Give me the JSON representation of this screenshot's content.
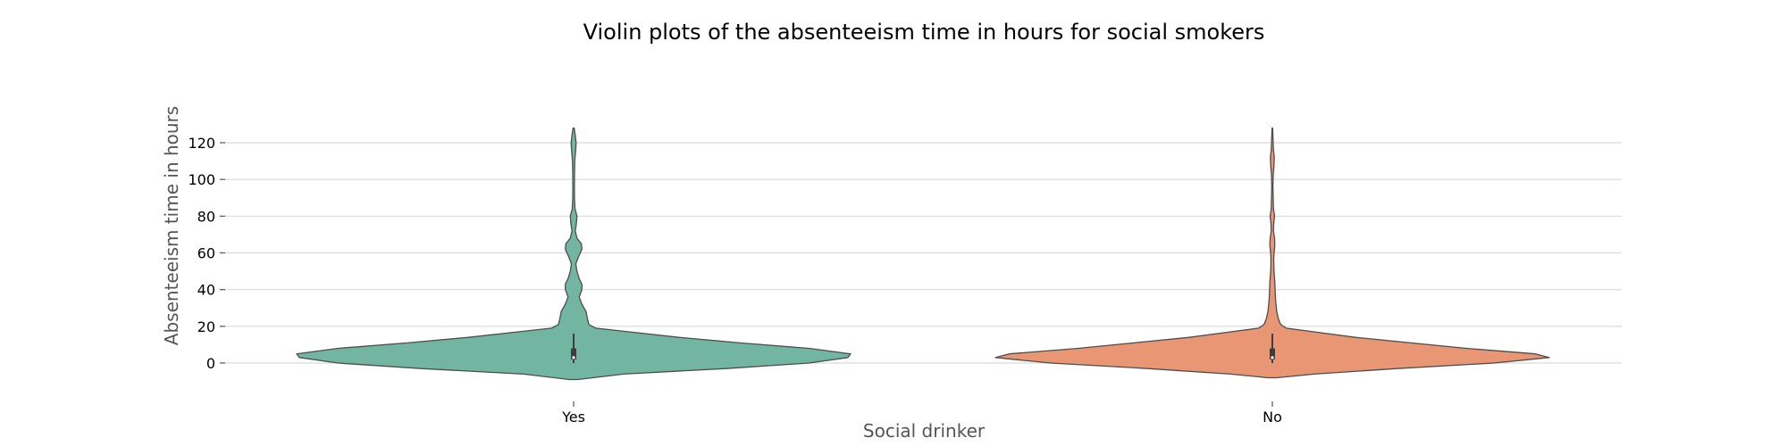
{
  "chart_data": {
    "type": "violin",
    "title": "Violin plots of the absenteeism time in hours for social smokers",
    "xlabel": "Social drinker",
    "ylabel": "Absenteeism time in hours",
    "categories": [
      "Yes",
      "No"
    ],
    "ylim": [
      -9,
      129
    ],
    "yticks": [
      0,
      20,
      40,
      60,
      80,
      100,
      120
    ],
    "grid": "horizontal",
    "colors": [
      "#72b6a1",
      "#e99675"
    ],
    "edge_color": "#4d4d4d",
    "violins": [
      {
        "category": "Yes",
        "density": [
          [
            -9,
            0.015
          ],
          [
            -6,
            0.18
          ],
          [
            -3,
            0.55
          ],
          [
            0,
            0.85
          ],
          [
            3,
            0.99
          ],
          [
            5,
            1.0
          ],
          [
            8,
            0.85
          ],
          [
            11,
            0.6
          ],
          [
            14,
            0.38
          ],
          [
            17,
            0.2
          ],
          [
            19,
            0.08
          ],
          [
            21,
            0.055
          ],
          [
            24,
            0.05
          ],
          [
            28,
            0.045
          ],
          [
            32,
            0.03
          ],
          [
            36,
            0.02
          ],
          [
            40,
            0.03
          ],
          [
            43,
            0.03
          ],
          [
            46,
            0.02
          ],
          [
            50,
            0.012
          ],
          [
            54,
            0.008
          ],
          [
            58,
            0.018
          ],
          [
            62,
            0.03
          ],
          [
            65,
            0.028
          ],
          [
            68,
            0.012
          ],
          [
            72,
            0.006
          ],
          [
            76,
            0.01
          ],
          [
            80,
            0.012
          ],
          [
            84,
            0.005
          ],
          [
            90,
            0.003
          ],
          [
            100,
            0.003
          ],
          [
            110,
            0.004
          ],
          [
            117,
            0.008
          ],
          [
            120,
            0.009
          ],
          [
            124,
            0.006
          ],
          [
            128,
            0.002
          ]
        ],
        "box": {
          "q1": 2,
          "median": 3,
          "q3": 8,
          "whisker_low": 0,
          "whisker_high": 16
        }
      },
      {
        "category": "No",
        "density": [
          [
            -8,
            0.015
          ],
          [
            -6,
            0.15
          ],
          [
            -3,
            0.45
          ],
          [
            0,
            0.8
          ],
          [
            3,
            1.0
          ],
          [
            5,
            0.95
          ],
          [
            8,
            0.7
          ],
          [
            11,
            0.5
          ],
          [
            14,
            0.3
          ],
          [
            17,
            0.15
          ],
          [
            19,
            0.05
          ],
          [
            21,
            0.03
          ],
          [
            24,
            0.022
          ],
          [
            28,
            0.016
          ],
          [
            32,
            0.013
          ],
          [
            36,
            0.011
          ],
          [
            40,
            0.01
          ],
          [
            44,
            0.009
          ],
          [
            50,
            0.006
          ],
          [
            56,
            0.005
          ],
          [
            60,
            0.006
          ],
          [
            64,
            0.009
          ],
          [
            68,
            0.008
          ],
          [
            72,
            0.004
          ],
          [
            76,
            0.005
          ],
          [
            80,
            0.008
          ],
          [
            84,
            0.004
          ],
          [
            90,
            0.003
          ],
          [
            96,
            0.002
          ],
          [
            102,
            0.003
          ],
          [
            108,
            0.006
          ],
          [
            112,
            0.007
          ],
          [
            116,
            0.004
          ],
          [
            120,
            0.003
          ],
          [
            124,
            0.002
          ],
          [
            128,
            0.001
          ]
        ],
        "box": {
          "q1": 2,
          "median": 3,
          "q3": 8,
          "whisker_low": 0,
          "whisker_high": 16
        }
      }
    ]
  }
}
